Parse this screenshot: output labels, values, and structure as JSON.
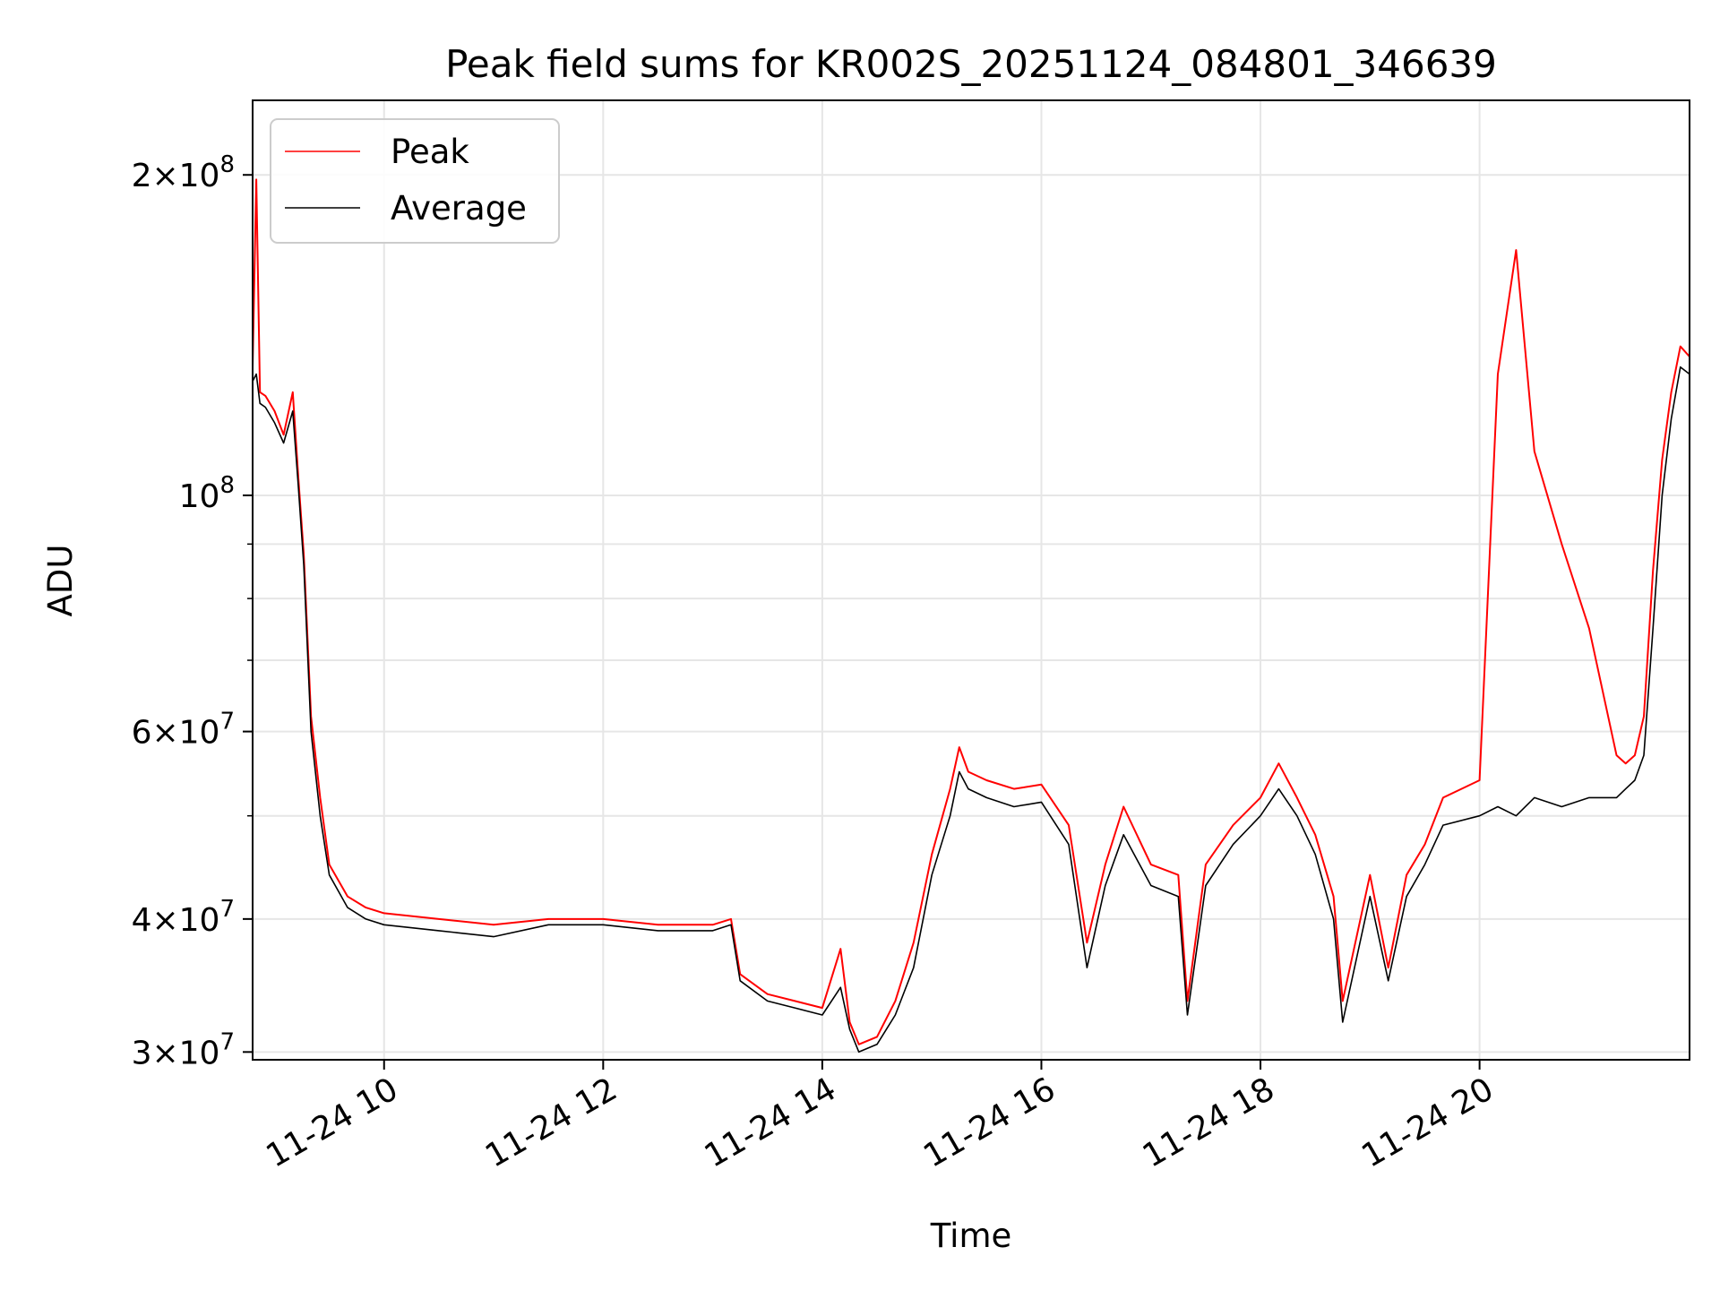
{
  "chart_data": {
    "type": "line",
    "title": "Peak field sums for KR002S_20251124_084801_346639",
    "xlabel": "Time",
    "ylabel": "ADU",
    "y_scale": "log",
    "ylim": [
      29500000,
      235000000
    ],
    "xlim": [
      "2025-11-24 08:48",
      "2025-11-24 21:55"
    ],
    "grid": true,
    "legend_position": "top-left",
    "x_ticks": [
      {
        "value": "2025-11-24 10:00",
        "label": "11-24 10"
      },
      {
        "value": "2025-11-24 12:00",
        "label": "11-24 12"
      },
      {
        "value": "2025-11-24 14:00",
        "label": "11-24 14"
      },
      {
        "value": "2025-11-24 16:00",
        "label": "11-24 16"
      },
      {
        "value": "2025-11-24 18:00",
        "label": "11-24 18"
      },
      {
        "value": "2025-11-24 20:00",
        "label": "11-24 20"
      }
    ],
    "y_major_ticks": [
      {
        "value": 30000000,
        "mant": "3",
        "exp": "7"
      },
      {
        "value": 40000000,
        "mant": "4",
        "exp": "7"
      },
      {
        "value": 60000000,
        "mant": "6",
        "exp": "7"
      },
      {
        "value": 100000000,
        "mant": "",
        "exp": "8"
      },
      {
        "value": 200000000,
        "mant": "2",
        "exp": "8"
      }
    ],
    "y_minor_ticks": [
      50000000,
      70000000,
      80000000,
      90000000
    ],
    "series": [
      {
        "name": "Peak",
        "color": "#ff0000",
        "x": [
          "2025-11-24 08:48",
          "2025-11-24 08:50",
          "2025-11-24 08:52",
          "2025-11-24 08:55",
          "2025-11-24 09:00",
          "2025-11-24 09:05",
          "2025-11-24 09:10",
          "2025-11-24 09:13",
          "2025-11-24 09:16",
          "2025-11-24 09:20",
          "2025-11-24 09:25",
          "2025-11-24 09:30",
          "2025-11-24 09:40",
          "2025-11-24 09:50",
          "2025-11-24 10:00",
          "2025-11-24 10:30",
          "2025-11-24 11:00",
          "2025-11-24 11:30",
          "2025-11-24 12:00",
          "2025-11-24 12:30",
          "2025-11-24 13:00",
          "2025-11-24 13:10",
          "2025-11-24 13:15",
          "2025-11-24 13:30",
          "2025-11-24 13:45",
          "2025-11-24 14:00",
          "2025-11-24 14:10",
          "2025-11-24 14:15",
          "2025-11-24 14:20",
          "2025-11-24 14:30",
          "2025-11-24 14:40",
          "2025-11-24 14:50",
          "2025-11-24 15:00",
          "2025-11-24 15:10",
          "2025-11-24 15:15",
          "2025-11-24 15:20",
          "2025-11-24 15:30",
          "2025-11-24 15:45",
          "2025-11-24 16:00",
          "2025-11-24 16:15",
          "2025-11-24 16:25",
          "2025-11-24 16:35",
          "2025-11-24 16:45",
          "2025-11-24 17:00",
          "2025-11-24 17:15",
          "2025-11-24 17:20",
          "2025-11-24 17:30",
          "2025-11-24 17:45",
          "2025-11-24 18:00",
          "2025-11-24 18:10",
          "2025-11-24 18:20",
          "2025-11-24 18:30",
          "2025-11-24 18:40",
          "2025-11-24 18:45",
          "2025-11-24 19:00",
          "2025-11-24 19:10",
          "2025-11-24 19:20",
          "2025-11-24 19:30",
          "2025-11-24 19:40",
          "2025-11-24 20:00",
          "2025-11-24 20:10",
          "2025-11-24 20:20",
          "2025-11-24 20:30",
          "2025-11-24 20:45",
          "2025-11-24 21:00",
          "2025-11-24 21:15",
          "2025-11-24 21:20",
          "2025-11-24 21:25",
          "2025-11-24 21:30",
          "2025-11-24 21:35",
          "2025-11-24 21:40",
          "2025-11-24 21:45",
          "2025-11-24 21:50",
          "2025-11-24 21:55"
        ],
        "y": [
          132000000,
          198000000,
          125000000,
          124000000,
          120000000,
          114000000,
          125000000,
          104000000,
          88000000,
          62000000,
          52000000,
          45000000,
          42000000,
          41000000,
          40500000,
          40000000,
          39500000,
          40000000,
          40000000,
          39500000,
          39500000,
          40000000,
          35500000,
          34000000,
          33500000,
          33000000,
          37500000,
          32000000,
          30500000,
          31000000,
          33500000,
          38000000,
          46000000,
          53000000,
          58000000,
          55000000,
          54000000,
          53000000,
          53500000,
          49000000,
          38000000,
          45000000,
          51000000,
          45000000,
          44000000,
          33500000,
          45000000,
          49000000,
          52000000,
          56000000,
          52000000,
          48000000,
          42000000,
          33500000,
          44000000,
          36000000,
          44000000,
          47000000,
          52000000,
          54000000,
          130000000,
          170000000,
          110000000,
          90000000,
          75000000,
          57000000,
          56000000,
          57000000,
          62000000,
          85000000,
          108000000,
          125000000,
          138000000,
          135000000
        ]
      },
      {
        "name": "Average",
        "color": "#000000",
        "x": [
          "2025-11-24 08:48",
          "2025-11-24 08:50",
          "2025-11-24 08:52",
          "2025-11-24 08:55",
          "2025-11-24 09:00",
          "2025-11-24 09:05",
          "2025-11-24 09:10",
          "2025-11-24 09:13",
          "2025-11-24 09:16",
          "2025-11-24 09:20",
          "2025-11-24 09:25",
          "2025-11-24 09:30",
          "2025-11-24 09:40",
          "2025-11-24 09:50",
          "2025-11-24 10:00",
          "2025-11-24 10:30",
          "2025-11-24 11:00",
          "2025-11-24 11:30",
          "2025-11-24 12:00",
          "2025-11-24 12:30",
          "2025-11-24 13:00",
          "2025-11-24 13:10",
          "2025-11-24 13:15",
          "2025-11-24 13:30",
          "2025-11-24 13:45",
          "2025-11-24 14:00",
          "2025-11-24 14:10",
          "2025-11-24 14:15",
          "2025-11-24 14:20",
          "2025-11-24 14:30",
          "2025-11-24 14:40",
          "2025-11-24 14:50",
          "2025-11-24 15:00",
          "2025-11-24 15:10",
          "2025-11-24 15:15",
          "2025-11-24 15:20",
          "2025-11-24 15:30",
          "2025-11-24 15:45",
          "2025-11-24 16:00",
          "2025-11-24 16:15",
          "2025-11-24 16:25",
          "2025-11-24 16:35",
          "2025-11-24 16:45",
          "2025-11-24 17:00",
          "2025-11-24 17:15",
          "2025-11-24 17:20",
          "2025-11-24 17:30",
          "2025-11-24 17:45",
          "2025-11-24 18:00",
          "2025-11-24 18:10",
          "2025-11-24 18:20",
          "2025-11-24 18:30",
          "2025-11-24 18:40",
          "2025-11-24 18:45",
          "2025-11-24 19:00",
          "2025-11-24 19:10",
          "2025-11-24 19:20",
          "2025-11-24 19:30",
          "2025-11-24 19:40",
          "2025-11-24 20:00",
          "2025-11-24 20:10",
          "2025-11-24 20:20",
          "2025-11-24 20:30",
          "2025-11-24 20:45",
          "2025-11-24 21:00",
          "2025-11-24 21:15",
          "2025-11-24 21:20",
          "2025-11-24 21:25",
          "2025-11-24 21:30",
          "2025-11-24 21:35",
          "2025-11-24 21:40",
          "2025-11-24 21:45",
          "2025-11-24 21:50",
          "2025-11-24 21:55"
        ],
        "y": [
          128000000,
          130000000,
          122000000,
          121000000,
          117000000,
          112000000,
          120000000,
          102000000,
          86000000,
          60000000,
          50000000,
          44000000,
          41000000,
          40000000,
          39500000,
          39000000,
          38500000,
          39500000,
          39500000,
          39000000,
          39000000,
          39500000,
          35000000,
          33500000,
          33000000,
          32500000,
          34500000,
          31500000,
          30000000,
          30500000,
          32500000,
          36000000,
          44000000,
          50000000,
          55000000,
          53000000,
          52000000,
          51000000,
          51500000,
          47000000,
          36000000,
          43000000,
          48000000,
          43000000,
          42000000,
          32500000,
          43000000,
          47000000,
          50000000,
          53000000,
          50000000,
          46000000,
          40000000,
          32000000,
          42000000,
          35000000,
          42000000,
          45000000,
          49000000,
          50000000,
          51000000,
          50000000,
          52000000,
          51000000,
          52000000,
          52000000,
          53000000,
          54000000,
          57000000,
          75000000,
          100000000,
          118000000,
          132000000,
          130000000
        ]
      }
    ]
  }
}
